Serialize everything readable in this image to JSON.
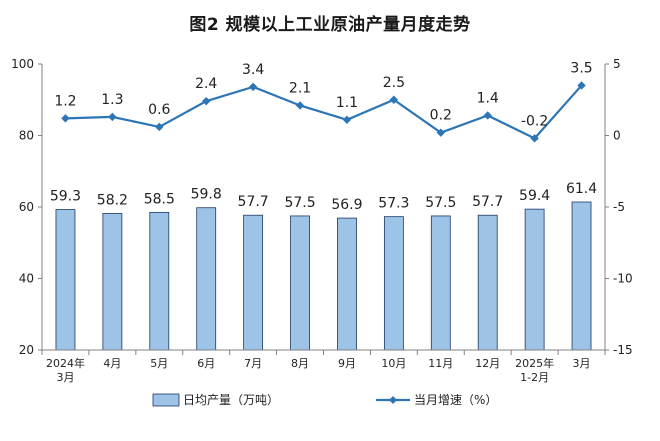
{
  "chart_data": {
    "type": "bar+line",
    "title": "图2  规模以上工业原油产量月度走势",
    "categories": [
      [
        "2024年",
        "3月"
      ],
      [
        "4月"
      ],
      [
        "5月"
      ],
      [
        "6月"
      ],
      [
        "7月"
      ],
      [
        "8月"
      ],
      [
        "9月"
      ],
      [
        "10月"
      ],
      [
        "11月"
      ],
      [
        "12月"
      ],
      [
        "2025年",
        "1-2月"
      ],
      [
        "3月"
      ]
    ],
    "series": [
      {
        "name": "日均产量（万吨）",
        "type": "bar",
        "axis": "left",
        "values": [
          59.3,
          58.2,
          58.5,
          59.8,
          57.7,
          57.5,
          56.9,
          57.3,
          57.5,
          57.7,
          59.4,
          61.4
        ],
        "labels": [
          "59.3",
          "58.2",
          "58.5",
          "59.8",
          "57.7",
          "57.5",
          "56.9",
          "57.3",
          "57.5",
          "57.7",
          "59.4",
          "61.4"
        ]
      },
      {
        "name": "当月增速（%）",
        "type": "line",
        "axis": "right",
        "values": [
          1.2,
          1.3,
          0.6,
          2.4,
          3.4,
          2.1,
          1.1,
          2.5,
          0.2,
          1.4,
          -0.2,
          3.5
        ],
        "labels": [
          "1.2",
          "1.3",
          "0.6",
          "2.4",
          "3.4",
          "2.1",
          "1.1",
          "2.5",
          "0.2",
          "1.4",
          "-0.2",
          "3.5"
        ]
      }
    ],
    "left_axis": {
      "range": [
        20,
        100
      ],
      "ticks": [
        "20",
        "40",
        "60",
        "80",
        "100"
      ]
    },
    "right_axis": {
      "range": [
        -15,
        5
      ],
      "ticks": [
        "-15",
        "-10",
        "-5",
        "0",
        "5"
      ]
    },
    "grid": false,
    "legend_position": "bottom",
    "colors": {
      "bar_fill": "#9dc3e6",
      "bar_stroke": "#1f3864",
      "line": "#2e75b6",
      "axis": "#808080"
    }
  }
}
